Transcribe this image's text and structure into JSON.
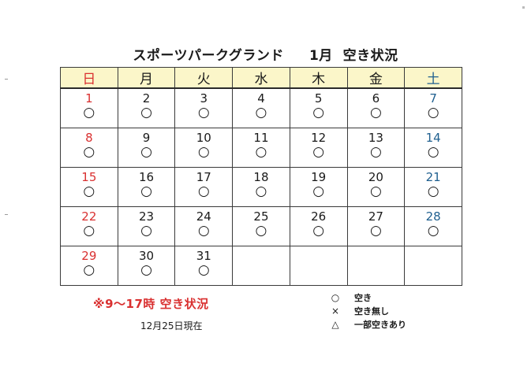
{
  "title": {
    "venue": "スポーツパークグランド",
    "month": "1月",
    "heading": "空き状況"
  },
  "weekdays": [
    {
      "label": "日",
      "type": "sun"
    },
    {
      "label": "月",
      "type": "weekday"
    },
    {
      "label": "火",
      "type": "weekday"
    },
    {
      "label": "水",
      "type": "weekday"
    },
    {
      "label": "木",
      "type": "weekday"
    },
    {
      "label": "金",
      "type": "weekday"
    },
    {
      "label": "土",
      "type": "sat"
    }
  ],
  "weeks": [
    [
      {
        "day": "1",
        "status": "○"
      },
      {
        "day": "2",
        "status": "○"
      },
      {
        "day": "3",
        "status": "○"
      },
      {
        "day": "4",
        "status": "○"
      },
      {
        "day": "5",
        "status": "○"
      },
      {
        "day": "6",
        "status": "○"
      },
      {
        "day": "7",
        "status": "○"
      }
    ],
    [
      {
        "day": "8",
        "status": "○"
      },
      {
        "day": "9",
        "status": "○"
      },
      {
        "day": "10",
        "status": "○"
      },
      {
        "day": "11",
        "status": "○"
      },
      {
        "day": "12",
        "status": "○"
      },
      {
        "day": "13",
        "status": "○"
      },
      {
        "day": "14",
        "status": "○"
      }
    ],
    [
      {
        "day": "15",
        "status": "○"
      },
      {
        "day": "16",
        "status": "○"
      },
      {
        "day": "17",
        "status": "○"
      },
      {
        "day": "18",
        "status": "○"
      },
      {
        "day": "19",
        "status": "○"
      },
      {
        "day": "20",
        "status": "○"
      },
      {
        "day": "21",
        "status": "○"
      }
    ],
    [
      {
        "day": "22",
        "status": "○"
      },
      {
        "day": "23",
        "status": "○"
      },
      {
        "day": "24",
        "status": "○"
      },
      {
        "day": "25",
        "status": "○"
      },
      {
        "day": "26",
        "status": "○"
      },
      {
        "day": "27",
        "status": "○"
      },
      {
        "day": "28",
        "status": "○"
      }
    ],
    [
      {
        "day": "29",
        "status": "○"
      },
      {
        "day": "30",
        "status": "○"
      },
      {
        "day": "31",
        "status": "○"
      },
      {
        "day": "",
        "status": ""
      },
      {
        "day": "",
        "status": ""
      },
      {
        "day": "",
        "status": ""
      },
      {
        "day": "",
        "status": ""
      }
    ]
  ],
  "hours_note": "※9～17時 空き状況",
  "as_of": "12月25日現在",
  "legend": [
    {
      "symbol": "○",
      "label": "空き"
    },
    {
      "symbol": "×",
      "label": "空き無し"
    },
    {
      "symbol": "△",
      "label": "一部空きあり"
    }
  ],
  "colors": {
    "sunday": "#d93030",
    "saturday": "#1f5f8f",
    "header_bg": "#fbf6c9",
    "note": "#d93030"
  }
}
